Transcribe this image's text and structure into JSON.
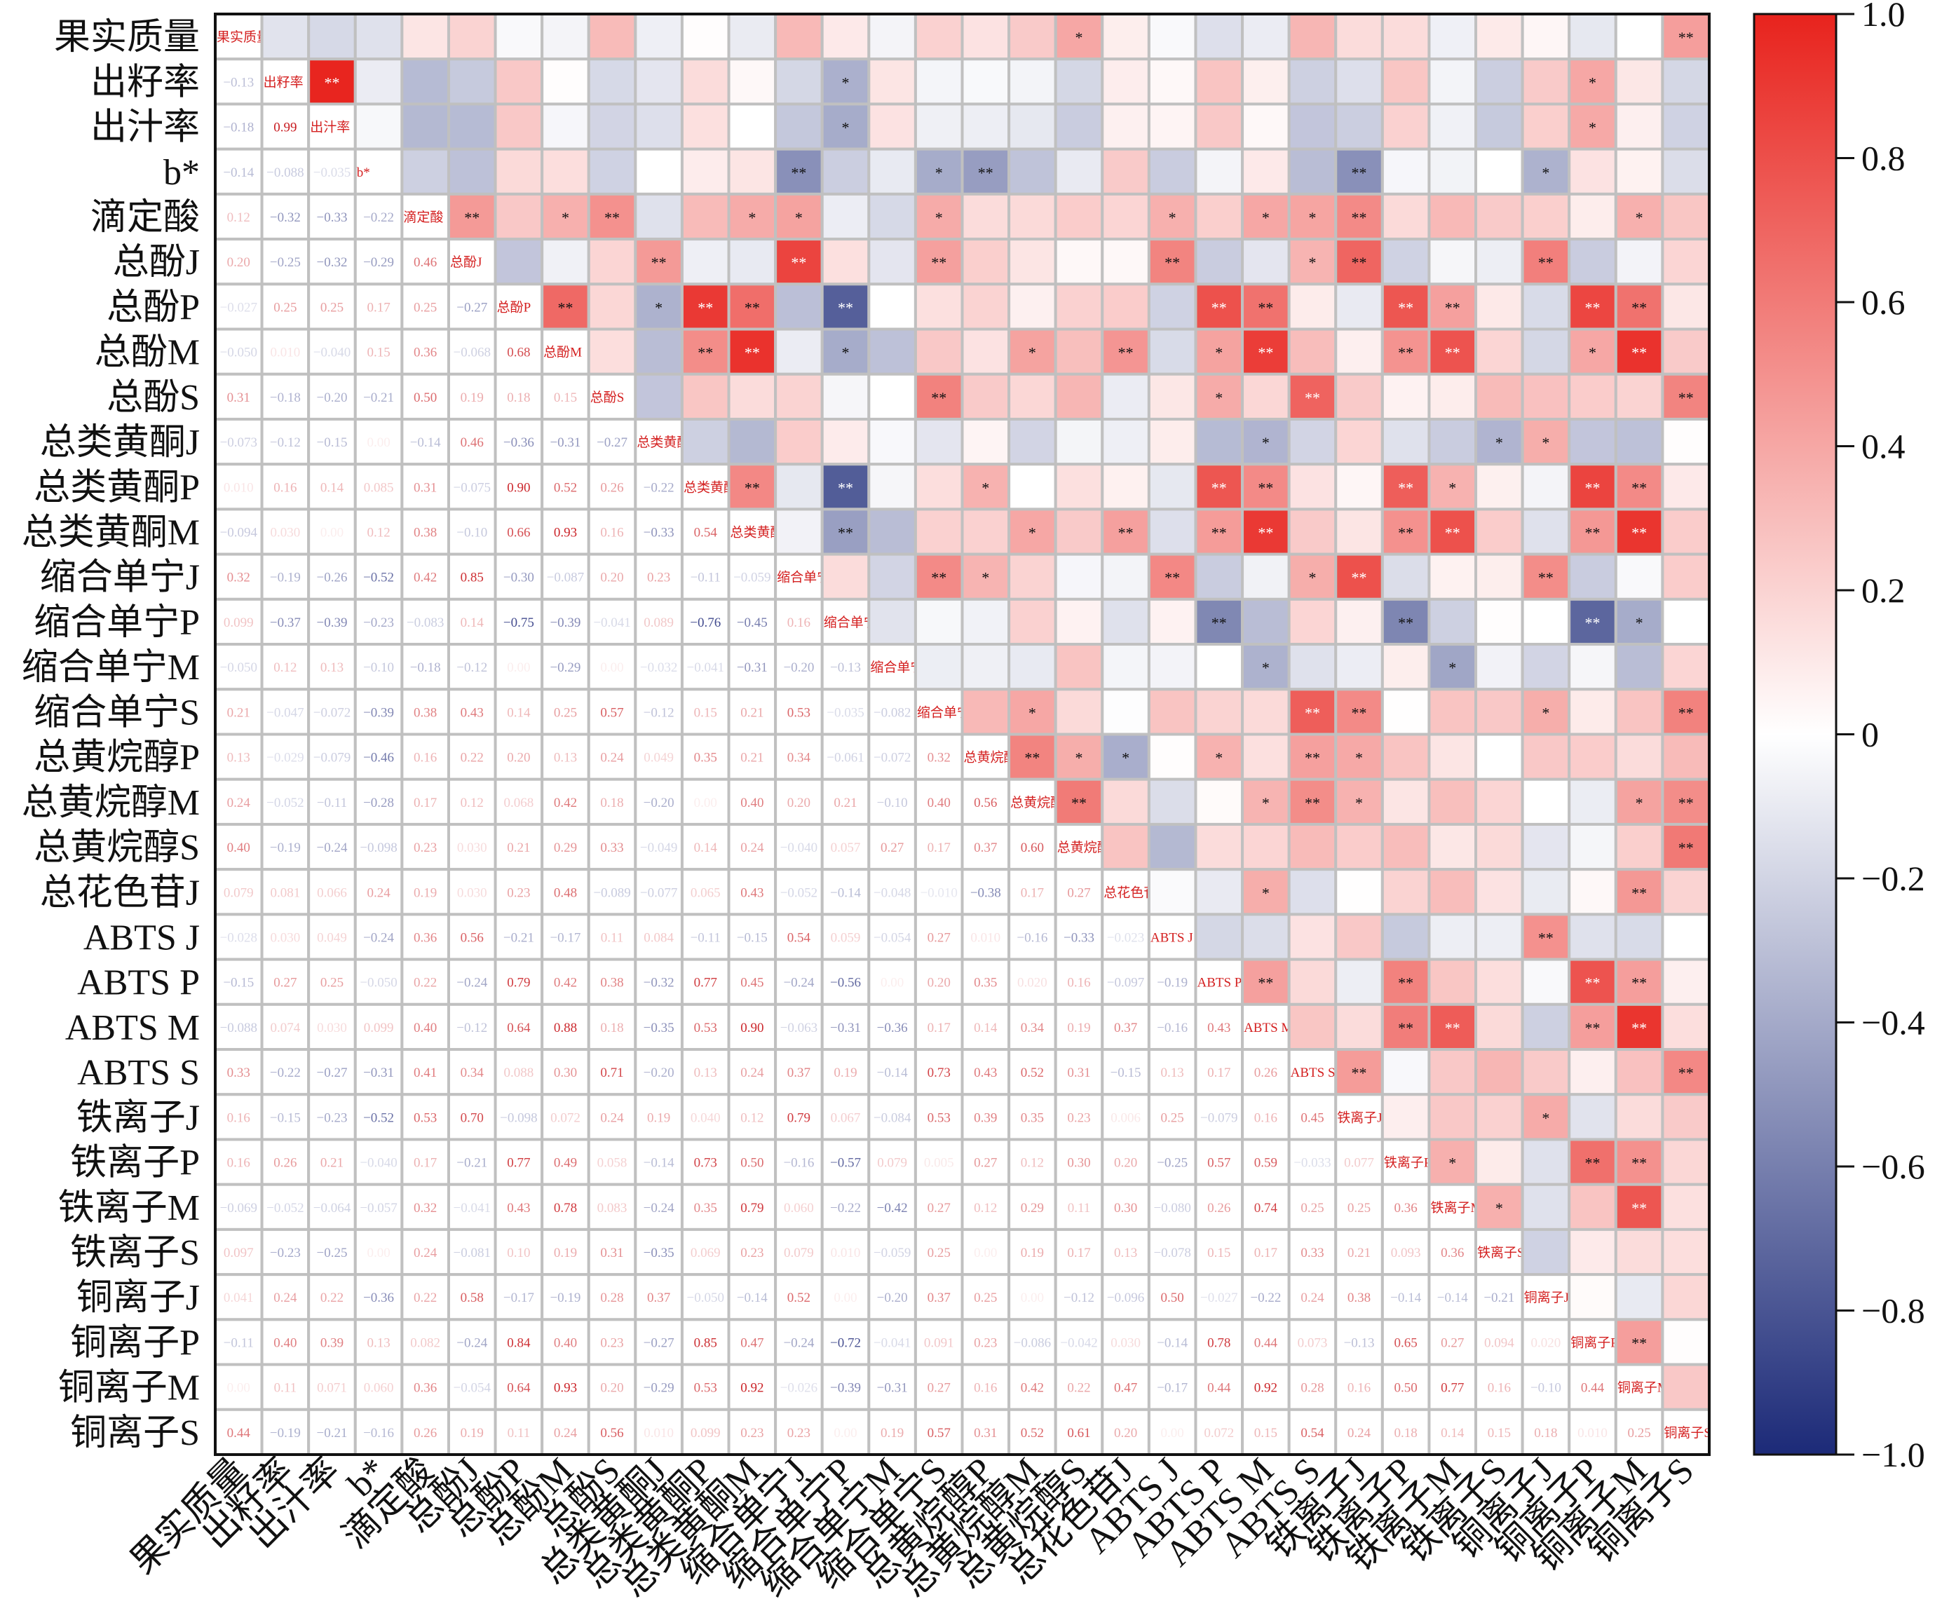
{
  "chart_data": {
    "type": "heatmap",
    "title": "",
    "labels": [
      "果实质量",
      "出籽率",
      "出汁率",
      "b*",
      "滴定酸",
      "总酚J",
      "总酚P",
      "总酚M",
      "总酚S",
      "总类黄酮J",
      "总类黄酮P",
      "总类黄酮M",
      "缩合单宁J",
      "缩合单宁P",
      "缩合单宁M",
      "缩合单宁S",
      "总黄烷醇P",
      "总黄烷醇M",
      "总黄烷醇S",
      "总花色苷J",
      "ABTS J",
      "ABTS P",
      "ABTS M",
      "ABTS S",
      "铁离子J",
      "铁离子P",
      "铁离子M",
      "铁离子S",
      "铜离子J",
      "铜离子P",
      "铜离子M",
      "铜离子S"
    ],
    "lower_triangle": [
      [],
      [
        -0.13
      ],
      [
        -0.18,
        0.99
      ],
      [
        -0.14,
        -0.088,
        -0.035
      ],
      [
        0.12,
        -0.32,
        -0.33,
        -0.22
      ],
      [
        0.2,
        -0.25,
        -0.32,
        -0.29,
        0.46
      ],
      [
        -0.027,
        0.25,
        0.25,
        0.17,
        0.25,
        -0.27
      ],
      [
        -0.05,
        0.01,
        -0.04,
        0.15,
        0.36,
        -0.068,
        0.68
      ],
      [
        0.31,
        -0.18,
        -0.2,
        -0.21,
        0.5,
        0.19,
        0.18,
        0.15
      ],
      [
        -0.073,
        -0.12,
        -0.15,
        0.0,
        -0.14,
        0.46,
        -0.36,
        -0.31,
        -0.27
      ],
      [
        0.01,
        0.16,
        0.14,
        0.085,
        0.31,
        -0.075,
        0.9,
        0.52,
        0.26,
        -0.22
      ],
      [
        -0.094,
        0.03,
        0.0,
        0.12,
        0.38,
        -0.1,
        0.66,
        0.93,
        0.16,
        -0.33,
        0.54
      ],
      [
        0.32,
        -0.19,
        -0.26,
        -0.52,
        0.42,
        0.85,
        -0.3,
        -0.087,
        0.2,
        0.23,
        -0.11,
        -0.059
      ],
      [
        0.099,
        -0.37,
        -0.39,
        -0.23,
        -0.083,
        0.14,
        -0.75,
        -0.39,
        -0.041,
        0.089,
        -0.76,
        -0.45,
        0.16
      ],
      [
        -0.05,
        0.12,
        0.13,
        -0.1,
        -0.18,
        -0.12,
        0.0,
        -0.29,
        0.0,
        -0.032,
        -0.041,
        -0.31,
        -0.2,
        -0.13
      ],
      [
        0.21,
        -0.047,
        -0.072,
        -0.39,
        0.38,
        0.43,
        0.14,
        0.25,
        0.57,
        -0.12,
        0.15,
        0.21,
        0.53,
        -0.035,
        -0.082
      ],
      [
        0.13,
        -0.029,
        -0.079,
        -0.46,
        0.16,
        0.22,
        0.2,
        0.13,
        0.24,
        0.049,
        0.35,
        0.21,
        0.34,
        -0.061,
        -0.072,
        0.32
      ],
      [
        0.24,
        -0.052,
        -0.11,
        -0.28,
        0.17,
        0.12,
        0.068,
        0.42,
        0.18,
        -0.2,
        0.0,
        0.4,
        0.2,
        0.21,
        -0.1,
        0.4,
        0.56
      ],
      [
        0.4,
        -0.19,
        -0.24,
        -0.098,
        0.23,
        0.03,
        0.21,
        0.29,
        0.33,
        -0.049,
        0.14,
        0.24,
        -0.04,
        0.057,
        0.27,
        0.17,
        0.37,
        0.6
      ],
      [
        0.079,
        0.081,
        0.066,
        0.24,
        0.19,
        0.03,
        0.23,
        0.48,
        -0.089,
        -0.077,
        0.065,
        0.43,
        -0.052,
        -0.14,
        -0.048,
        -0.01,
        -0.38,
        0.17,
        0.27
      ],
      [
        -0.028,
        0.03,
        0.049,
        -0.24,
        0.36,
        0.56,
        -0.21,
        -0.17,
        0.11,
        0.084,
        -0.11,
        -0.15,
        0.54,
        0.059,
        -0.054,
        0.27,
        0.01,
        -0.16,
        -0.33,
        -0.023
      ],
      [
        -0.15,
        0.27,
        0.25,
        -0.05,
        0.22,
        -0.24,
        0.79,
        0.42,
        0.38,
        -0.32,
        0.77,
        0.45,
        -0.24,
        -0.56,
        0.0,
        0.2,
        0.35,
        0.02,
        0.16,
        -0.097,
        -0.19
      ],
      [
        -0.088,
        0.074,
        0.03,
        0.099,
        0.4,
        -0.12,
        0.64,
        0.88,
        0.18,
        -0.35,
        0.53,
        0.9,
        -0.063,
        -0.31,
        -0.36,
        0.17,
        0.14,
        0.34,
        0.19,
        0.37,
        -0.16,
        0.43
      ],
      [
        0.33,
        -0.22,
        -0.27,
        -0.31,
        0.41,
        0.34,
        0.088,
        0.3,
        0.71,
        -0.2,
        0.13,
        0.24,
        0.37,
        0.19,
        -0.14,
        0.73,
        0.43,
        0.52,
        0.31,
        -0.15,
        0.13,
        0.17,
        0.26
      ],
      [
        0.16,
        -0.15,
        -0.23,
        -0.52,
        0.53,
        0.7,
        -0.098,
        0.072,
        0.24,
        0.19,
        0.04,
        0.12,
        0.79,
        0.067,
        -0.084,
        0.53,
        0.39,
        0.35,
        0.23,
        0.006,
        0.25,
        -0.079,
        0.16,
        0.45
      ],
      [
        0.16,
        0.26,
        0.21,
        -0.04,
        0.17,
        -0.21,
        0.77,
        0.49,
        0.058,
        -0.14,
        0.73,
        0.5,
        -0.16,
        -0.57,
        0.079,
        0.005,
        0.27,
        0.12,
        0.3,
        0.2,
        -0.25,
        0.57,
        0.59,
        -0.033,
        0.077
      ],
      [
        -0.069,
        -0.052,
        -0.064,
        -0.057,
        0.32,
        -0.041,
        0.43,
        0.78,
        0.083,
        -0.24,
        0.35,
        0.79,
        0.06,
        -0.22,
        -0.42,
        0.27,
        0.12,
        0.29,
        0.11,
        0.3,
        -0.08,
        0.26,
        0.74,
        0.25,
        0.25,
        0.36
      ],
      [
        0.097,
        -0.23,
        -0.25,
        0.0,
        0.24,
        -0.081,
        0.1,
        0.19,
        0.31,
        -0.35,
        0.069,
        0.23,
        0.079,
        0.01,
        -0.059,
        0.25,
        0.0,
        0.19,
        0.17,
        0.13,
        -0.078,
        0.15,
        0.17,
        0.33,
        0.21,
        0.093,
        0.36
      ],
      [
        0.041,
        0.24,
        0.22,
        -0.36,
        0.22,
        0.58,
        -0.17,
        -0.19,
        0.28,
        0.37,
        -0.05,
        -0.14,
        0.52,
        0.0,
        -0.2,
        0.37,
        0.25,
        0.0,
        -0.12,
        -0.096,
        0.5,
        -0.027,
        -0.22,
        0.24,
        0.38,
        -0.14,
        -0.14,
        -0.21
      ],
      [
        -0.11,
        0.4,
        0.39,
        0.13,
        0.082,
        -0.24,
        0.84,
        0.4,
        0.23,
        -0.27,
        0.85,
        0.47,
        -0.24,
        -0.72,
        -0.041,
        0.091,
        0.23,
        -0.086,
        -0.042,
        0.03,
        -0.14,
        0.78,
        0.44,
        0.073,
        -0.13,
        0.65,
        0.27,
        0.094,
        0.02
      ],
      [
        0.0,
        0.11,
        0.071,
        0.06,
        0.36,
        -0.054,
        0.64,
        0.93,
        0.2,
        -0.29,
        0.53,
        0.92,
        -0.026,
        -0.39,
        -0.31,
        0.27,
        0.16,
        0.42,
        0.22,
        0.47,
        -0.17,
        0.44,
        0.92,
        0.28,
        0.16,
        0.5,
        0.77,
        0.16,
        -0.1,
        0.44
      ],
      [
        0.44,
        -0.19,
        -0.21,
        -0.16,
        0.26,
        0.19,
        0.11,
        0.24,
        0.56,
        0.01,
        0.099,
        0.23,
        0.23,
        0.0,
        0.19,
        0.57,
        0.31,
        0.52,
        0.61,
        0.2,
        0.0,
        0.072,
        0.15,
        0.54,
        0.24,
        0.18,
        0.14,
        0.15,
        0.18,
        0.01,
        0.25
      ]
    ],
    "significance_upper": {
      "0": {
        "18": "*",
        "31": "**"
      },
      "1": {
        "2": "**",
        "13": "*",
        "29": "*"
      },
      "2": {
        "13": "*",
        "29": "*"
      },
      "3": {
        "12": "**",
        "15": "*",
        "16": "**",
        "24": "**",
        "28": "*"
      },
      "4": {
        "5": "**",
        "7": "*",
        "8": "**",
        "11": "*",
        "12": "*",
        "15": "*",
        "20": "*",
        "22": "*",
        "23": "*",
        "24": "**",
        "30": "*"
      },
      "5": {
        "9": "**",
        "12": "**",
        "15": "**",
        "20": "**",
        "23": "*",
        "24": "**",
        "28": "**"
      },
      "6": {
        "7": "**",
        "9": "*",
        "10": "**",
        "11": "**",
        "13": "**",
        "21": "**",
        "22": "**",
        "25": "**",
        "26": "**",
        "29": "**",
        "30": "**"
      },
      "7": {
        "10": "**",
        "11": "**",
        "13": "*",
        "17": "*",
        "19": "**",
        "21": "*",
        "22": "**",
        "25": "**",
        "26": "**",
        "29": "*",
        "30": "**"
      },
      "8": {
        "15": "**",
        "21": "*",
        "23": "**",
        "31": "**"
      },
      "9": {
        "22": "*",
        "27": "*",
        "28": "*"
      },
      "10": {
        "11": "**",
        "13": "**",
        "16": "*",
        "21": "**",
        "22": "**",
        "25": "**",
        "26": "*",
        "29": "**",
        "30": "**"
      },
      "11": {
        "13": "**",
        "17": "*",
        "19": "**",
        "21": "**",
        "22": "**",
        "25": "**",
        "26": "**",
        "29": "**",
        "30": "**"
      },
      "12": {
        "15": "**",
        "16": "*",
        "20": "**",
        "23": "*",
        "24": "**",
        "28": "**"
      },
      "13": {
        "21": "**",
        "25": "**",
        "29": "**",
        "30": "*"
      },
      "14": {
        "22": "*",
        "26": "*"
      },
      "15": {
        "17": "*",
        "23": "**",
        "24": "**",
        "28": "*",
        "31": "**"
      },
      "16": {
        "17": "**",
        "18": "*",
        "19": "*",
        "21": "*",
        "23": "**",
        "24": "*"
      },
      "17": {
        "18": "**",
        "22": "*",
        "23": "**",
        "24": "*",
        "30": "*",
        "31": "**"
      },
      "18": {
        "31": "**"
      },
      "19": {
        "22": "*",
        "30": "**"
      },
      "20": {
        "28": "**"
      },
      "21": {
        "22": "**",
        "25": "**",
        "29": "**",
        "30": "**"
      },
      "22": {
        "25": "**",
        "26": "**",
        "29": "**",
        "30": "**"
      },
      "23": {
        "24": "**",
        "31": "**"
      },
      "24": {
        "28": "*"
      },
      "25": {
        "26": "*",
        "29": "**",
        "30": "**"
      },
      "26": {
        "27": "*",
        "30": "**"
      },
      "29": {
        "30": "**"
      }
    },
    "colorbar": {
      "range": [
        -1,
        1
      ],
      "ticks": [
        1.0,
        0.8,
        0.6,
        0.4,
        0.2,
        0,
        -0.2,
        -0.4,
        -0.6,
        -0.8,
        -1.0
      ],
      "tick_labels": [
        "1.0",
        "0.8",
        "0.6",
        "0.4",
        "0.2",
        "0",
        "−0.2",
        "−0.4",
        "−0.6",
        "−0.8",
        "−1.0"
      ]
    },
    "colors": {
      "positive": "#e8231d",
      "zero": "#ffffff",
      "negative": "#1c2a78",
      "grid": "#c0c0c0"
    },
    "legend": "right"
  }
}
